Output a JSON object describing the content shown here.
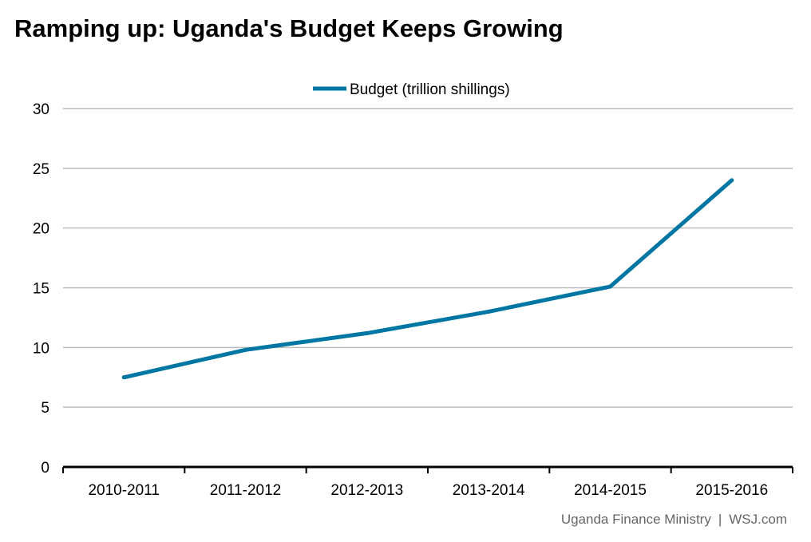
{
  "chart_data": {
    "type": "line",
    "title": "Ramping up: Uganda's Budget Keeps Growing",
    "categories": [
      "2010-2011",
      "2011-2012",
      "2012-2013",
      "2013-2014",
      "2014-2015",
      "2015-2016"
    ],
    "series": [
      {
        "name": "Budget (trillion shillings)",
        "values": [
          7.5,
          9.8,
          11.2,
          13.0,
          15.1,
          24.0
        ],
        "color": "#0076a3"
      }
    ],
    "xlabel": "",
    "ylabel": "",
    "ylim": [
      0,
      30
    ],
    "yticks": [
      0,
      5,
      10,
      15,
      20,
      25,
      30
    ],
    "grid": true,
    "legend_position": "top-center"
  },
  "source": {
    "left": "Uganda Finance Ministry",
    "separator": "|",
    "right": "WSJ.com"
  },
  "colors": {
    "series": "#0076a3",
    "grid": "#bbbbbb",
    "axis": "#000000",
    "source_text": "#666666"
  }
}
